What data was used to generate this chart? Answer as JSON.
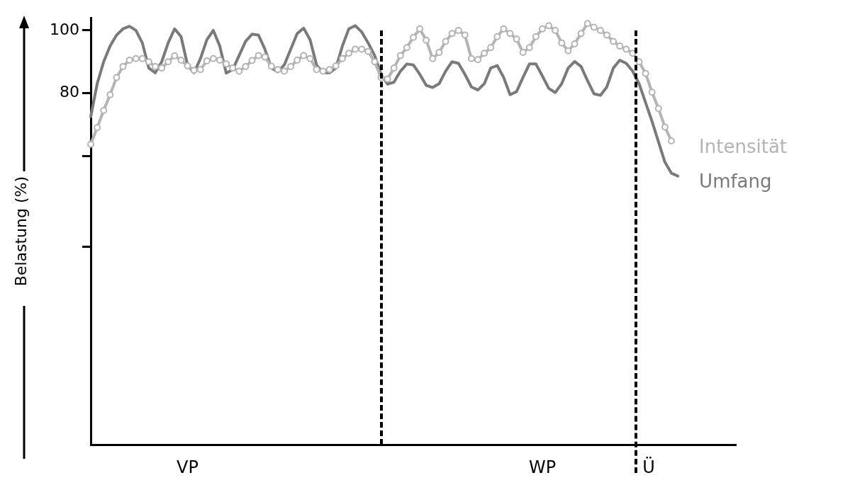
{
  "chart_data": {
    "type": "line",
    "ylabel": "Belastung (%)",
    "ylim": [
      -32,
      104
    ],
    "categories": [
      null,
      null,
      null,
      null,
      null,
      null,
      null,
      null,
      null,
      null,
      null,
      null,
      null,
      null,
      null,
      null,
      null,
      null,
      null,
      null,
      null,
      null,
      null,
      null,
      null,
      null,
      null,
      null,
      null,
      null,
      null,
      null,
      null,
      null,
      null,
      null,
      null,
      null,
      null,
      null,
      null,
      null,
      null,
      null,
      null,
      null,
      null,
      null,
      null,
      null,
      null,
      null,
      null,
      null,
      null,
      null,
      null,
      null,
      null,
      null,
      null,
      null,
      null,
      null,
      null,
      null,
      null,
      null,
      null,
      null,
      null,
      null,
      null,
      null,
      null,
      null,
      null,
      null,
      null,
      null,
      null,
      null,
      null,
      null,
      null,
      null,
      null,
      null,
      null,
      null,
      null,
      null,
      null,
      null,
      null,
      null,
      null,
      null,
      null,
      null,
      null
    ],
    "yticks": [
      100,
      80,
      {
        "value": 60,
        "label": null
      },
      {
        "value": 31,
        "label": null
      }
    ],
    "tick_labels": "y",
    "grid": false,
    "legend": "right",
    "line_style": "solid",
    "series": [
      {
        "name": "Intensität",
        "color": "#b4b4b4",
        "marker": "circle",
        "values": [
          63.7,
          69,
          74.5,
          79.5,
          85,
          88.5,
          90.5,
          91,
          91,
          90,
          88.5,
          88,
          90,
          91.9,
          90.5,
          88.7,
          87.3,
          87.5,
          90.3,
          91,
          90.5,
          89.3,
          88,
          87,
          88.5,
          90.4,
          92,
          91.5,
          88.6,
          87.5,
          87,
          88.5,
          90.5,
          92,
          91,
          87.5,
          87,
          87.5,
          88.7,
          91,
          92.7,
          94,
          94,
          93.3,
          90,
          85,
          84.5,
          88,
          92,
          94.5,
          97.8,
          100.5,
          96.9,
          91,
          93,
          96.5,
          99,
          100,
          98.5,
          91,
          90.7,
          92.7,
          94.5,
          98,
          100.5,
          99,
          97.2,
          93,
          94.5,
          98,
          100.5,
          101.5,
          100,
          96,
          93.5,
          95.7,
          99,
          102.2,
          101,
          100,
          98.5,
          96.5,
          95,
          94,
          92.7,
          90,
          86.3,
          80.3,
          75.1,
          69.2,
          64.8,
          null,
          null,
          null,
          null,
          null,
          null,
          null,
          null,
          null,
          null
        ]
      },
      {
        "name": "Umfang",
        "color": "#7a7a7a",
        "marker": "none",
        "values": [
          72.5,
          83,
          90,
          95,
          98.5,
          100.5,
          101.3,
          100,
          96,
          88,
          86.5,
          90,
          96,
          100.5,
          98,
          89,
          86.5,
          91,
          97,
          100,
          95,
          86.4,
          87.5,
          92,
          96.5,
          98.8,
          98.5,
          94,
          88,
          86.8,
          89,
          94,
          99,
          100.7,
          97,
          89,
          86.5,
          86.5,
          88,
          95,
          100.5,
          101.5,
          99.5,
          96,
          92,
          86,
          82.9,
          83.5,
          87,
          89.3,
          89,
          86,
          82.5,
          81.8,
          83,
          87,
          90,
          89.5,
          86,
          82,
          81,
          83,
          88,
          88.8,
          85,
          79.5,
          80.5,
          85,
          89.3,
          89.3,
          85.5,
          81.5,
          80.2,
          83,
          88,
          90.1,
          88.5,
          84,
          79.8,
          79.3,
          82,
          88,
          90.5,
          89.5,
          87,
          83,
          77,
          71,
          64.5,
          58,
          54.5,
          53.6,
          null,
          null,
          null,
          null,
          null,
          null,
          null,
          null,
          null
        ]
      }
    ],
    "annotations": [
      "VP",
      "WP",
      "Ü"
    ]
  }
}
